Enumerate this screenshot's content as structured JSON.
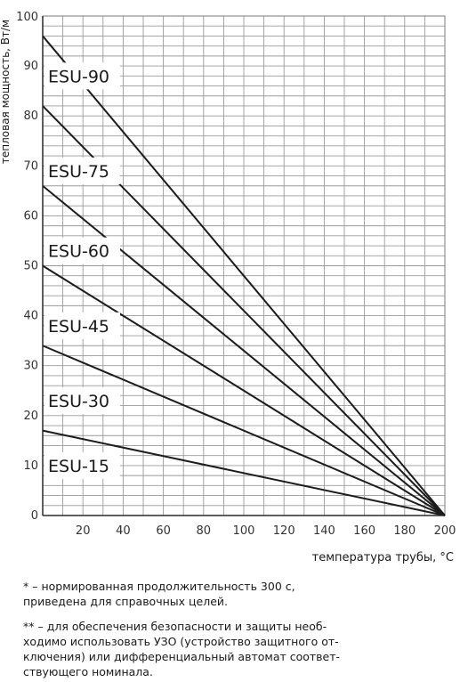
{
  "chart_data": {
    "type": "line",
    "ylabel": "тепловая мощность, Вт/м",
    "xlabel": "температура трубы, °С",
    "xlim": [
      0,
      200
    ],
    "ylim": [
      0,
      100
    ],
    "x_ticks": [
      "20",
      "40",
      "60",
      "80",
      "100",
      "120",
      "140",
      "160",
      "180",
      "200"
    ],
    "y_ticks": [
      "0",
      "10",
      "20",
      "30",
      "40",
      "50",
      "60",
      "70",
      "80",
      "90",
      "100"
    ],
    "grid": true,
    "series": [
      {
        "name": "ESU-90",
        "x": [
          0,
          200
        ],
        "y": [
          96,
          0
        ]
      },
      {
        "name": "ESU-75",
        "x": [
          0,
          200
        ],
        "y": [
          82,
          0
        ]
      },
      {
        "name": "ESU-60",
        "x": [
          0,
          200
        ],
        "y": [
          66,
          0
        ]
      },
      {
        "name": "ESU-45",
        "x": [
          0,
          200
        ],
        "y": [
          50,
          0
        ]
      },
      {
        "name": "ESU-30",
        "x": [
          0,
          200
        ],
        "y": [
          34,
          0
        ]
      },
      {
        "name": "ESU-15",
        "x": [
          0,
          200
        ],
        "y": [
          17,
          0
        ]
      }
    ],
    "label_y": [
      88,
      69,
      53,
      38,
      23,
      10
    ]
  },
  "notes": [
    "* – нормированная продолжительность 300 с,\nприведена для справочных целей.",
    "** – для обеспечения безопасности и защиты необ-\nходимо использовать УЗО (устройство защитного от-\nключения) или дифференциальный автомат соответ-\nствующего номинала."
  ]
}
